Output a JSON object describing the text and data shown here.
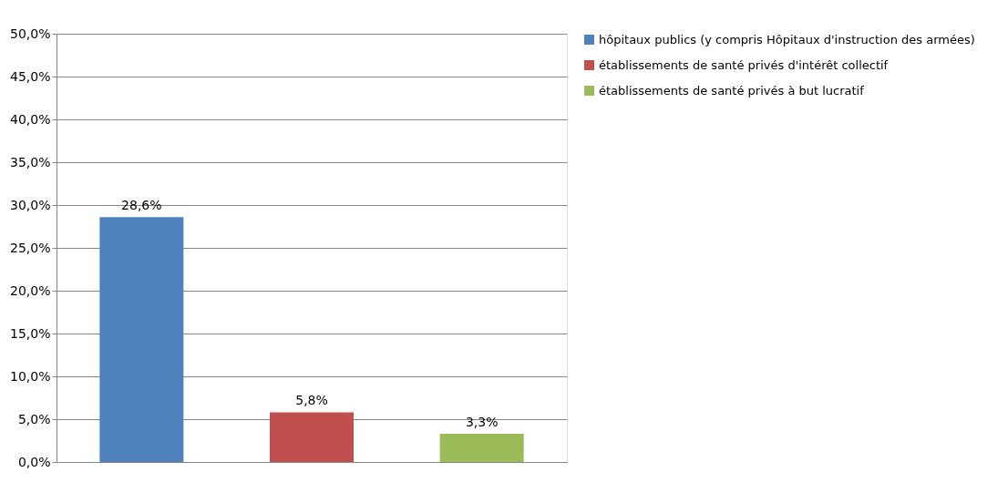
{
  "chart_data": {
    "type": "bar",
    "categories": [
      null,
      null,
      null
    ],
    "series": [
      {
        "name": "hôpitaux publics (y compris Hôpitaux d'instruction des armées)",
        "color": "#4f81bd",
        "values": [
          28.6,
          null,
          null
        ],
        "value_labels": [
          "28,6%",
          null,
          null
        ]
      },
      {
        "name": "établissements de santé privés d'intérêt collectif",
        "color": "#c0504d",
        "values": [
          null,
          5.8,
          null
        ],
        "value_labels": [
          null,
          "5,8%",
          null
        ]
      },
      {
        "name": "établissements de santé privés à but lucratif",
        "color": "#9bbb59",
        "values": [
          null,
          null,
          3.3
        ],
        "value_labels": [
          null,
          null,
          "3,3%"
        ]
      }
    ],
    "ylim": [
      0,
      50
    ],
    "yticks": [
      {
        "value": 0,
        "label": "0,0%"
      },
      {
        "value": 5,
        "label": "5,0%"
      },
      {
        "value": 10,
        "label": "10,0%"
      },
      {
        "value": 15,
        "label": "15,0%"
      },
      {
        "value": 20,
        "label": "20,0%"
      },
      {
        "value": 25,
        "label": "25,0%"
      },
      {
        "value": 30,
        "label": "30,0%"
      },
      {
        "value": 35,
        "label": "35,0%"
      },
      {
        "value": 40,
        "label": "40,0%"
      },
      {
        "value": 45,
        "label": "45,0%"
      },
      {
        "value": 50,
        "label": "50,0%"
      }
    ],
    "grid": "y",
    "legend": "right"
  }
}
